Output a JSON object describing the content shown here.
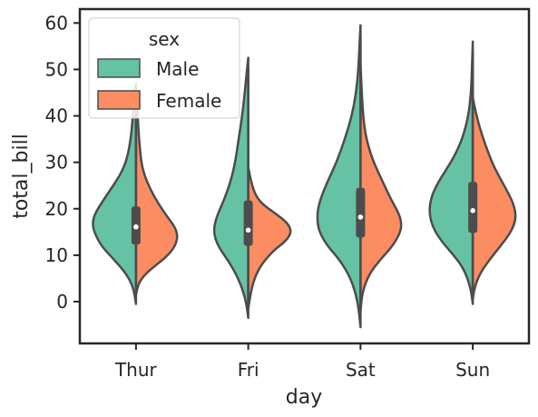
{
  "chart_data": {
    "type": "violin",
    "split": true,
    "xlabel": "day",
    "ylabel": "total_bill",
    "categories": [
      "Thur",
      "Fri",
      "Sat",
      "Sun"
    ],
    "ylim": [
      -9,
      63
    ],
    "yticks": [
      0,
      10,
      20,
      30,
      40,
      50,
      60
    ],
    "legend": {
      "title": "sex",
      "position": "top-left",
      "entries": [
        {
          "label": "Male",
          "color": "#66c2a5"
        },
        {
          "label": "Female",
          "color": "#fc8d62"
        }
      ]
    },
    "series": [
      {
        "name": "Male",
        "color": "#66c2a5",
        "side": "left",
        "violins": [
          {
            "range": [
              -0.5,
              47
            ],
            "median": 16.1,
            "q1": 12.3,
            "q3": 20.5,
            "profile": [
              [
                -0.5,
                0
              ],
              [
                3,
                0.06
              ],
              [
                6,
                0.22
              ],
              [
                9,
                0.5
              ],
              [
                12,
                0.8
              ],
              [
                15,
                0.96
              ],
              [
                17,
                1.0
              ],
              [
                19,
                0.94
              ],
              [
                22,
                0.74
              ],
              [
                25,
                0.52
              ],
              [
                28,
                0.32
              ],
              [
                31,
                0.2
              ],
              [
                35,
                0.12
              ],
              [
                40,
                0.07
              ],
              [
                44,
                0.04
              ],
              [
                47,
                0
              ]
            ]
          },
          {
            "range": [
              -3.5,
              52.5
            ],
            "median": 15.4,
            "q1": 12.0,
            "q3": 21.8,
            "profile": [
              [
                -3.5,
                0
              ],
              [
                0,
                0.05
              ],
              [
                4,
                0.18
              ],
              [
                8,
                0.4
              ],
              [
                12,
                0.7
              ],
              [
                15,
                0.8
              ],
              [
                18,
                0.74
              ],
              [
                22,
                0.55
              ],
              [
                26,
                0.4
              ],
              [
                30,
                0.3
              ],
              [
                35,
                0.22
              ],
              [
                40,
                0.14
              ],
              [
                45,
                0.08
              ],
              [
                49,
                0.04
              ],
              [
                52.5,
                0
              ]
            ]
          },
          {
            "range": [
              -5.5,
              59.5
            ],
            "median": 18.2,
            "q1": 13.8,
            "q3": 24.5,
            "profile": [
              [
                -5.5,
                0
              ],
              [
                0,
                0.06
              ],
              [
                5,
                0.22
              ],
              [
                9,
                0.48
              ],
              [
                12,
                0.76
              ],
              [
                15,
                0.95
              ],
              [
                18,
                1.0
              ],
              [
                21,
                0.96
              ],
              [
                25,
                0.8
              ],
              [
                30,
                0.55
              ],
              [
                35,
                0.36
              ],
              [
                40,
                0.2
              ],
              [
                45,
                0.1
              ],
              [
                50,
                0.05
              ],
              [
                55,
                0.025
              ],
              [
                59.5,
                0
              ]
            ]
          },
          {
            "range": [
              -0.5,
              56
            ],
            "median": 19.6,
            "q1": 14.8,
            "q3": 25.8,
            "profile": [
              [
                -0.5,
                0
              ],
              [
                3,
                0.05
              ],
              [
                7,
                0.2
              ],
              [
                10,
                0.44
              ],
              [
                13,
                0.72
              ],
              [
                16,
                0.92
              ],
              [
                19,
                1.0
              ],
              [
                22,
                0.97
              ],
              [
                25,
                0.84
              ],
              [
                28,
                0.64
              ],
              [
                31,
                0.44
              ],
              [
                35,
                0.24
              ],
              [
                40,
                0.1
              ],
              [
                45,
                0.04
              ],
              [
                50,
                0.02
              ],
              [
                56,
                0
              ]
            ]
          }
        ]
      },
      {
        "name": "Female",
        "color": "#fc8d62",
        "side": "right",
        "violins": [
          {
            "range": [
              1.5,
              44.5
            ],
            "median": 16.1,
            "q1": 12.3,
            "q3": 20.5,
            "profile": [
              [
                1.5,
                0
              ],
              [
                4,
                0.06
              ],
              [
                6,
                0.22
              ],
              [
                8,
                0.48
              ],
              [
                10,
                0.74
              ],
              [
                12,
                0.9
              ],
              [
                14,
                0.96
              ],
              [
                16,
                0.9
              ],
              [
                18,
                0.74
              ],
              [
                21,
                0.52
              ],
              [
                24,
                0.34
              ],
              [
                27,
                0.2
              ],
              [
                30,
                0.12
              ],
              [
                35,
                0.07
              ],
              [
                40,
                0.04
              ],
              [
                44.5,
                0
              ]
            ]
          },
          {
            "range": [
              -1.5,
              29
            ],
            "median": 15.4,
            "q1": 12.0,
            "q3": 21.8,
            "profile": [
              [
                -1.5,
                0
              ],
              [
                2,
                0.06
              ],
              [
                5,
                0.14
              ],
              [
                8,
                0.3
              ],
              [
                11,
                0.58
              ],
              [
                13,
                0.86
              ],
              [
                15,
                1.0
              ],
              [
                17,
                0.9
              ],
              [
                19,
                0.62
              ],
              [
                21,
                0.32
              ],
              [
                23,
                0.16
              ],
              [
                26,
                0.06
              ],
              [
                29,
                0
              ]
            ]
          },
          {
            "range": [
              -2,
              51
            ],
            "median": 18.2,
            "q1": 13.8,
            "q3": 24.5,
            "profile": [
              [
                -2,
                0
              ],
              [
                2,
                0.04
              ],
              [
                6,
                0.2
              ],
              [
                9,
                0.45
              ],
              [
                12,
                0.74
              ],
              [
                15,
                0.92
              ],
              [
                17,
                0.94
              ],
              [
                19,
                0.88
              ],
              [
                22,
                0.7
              ],
              [
                26,
                0.5
              ],
              [
                30,
                0.3
              ],
              [
                34,
                0.16
              ],
              [
                38,
                0.08
              ],
              [
                43,
                0.04
              ],
              [
                47,
                0.02
              ],
              [
                51,
                0
              ]
            ]
          },
          {
            "range": [
              0.5,
              44
            ],
            "median": 19.6,
            "q1": 14.8,
            "q3": 25.8,
            "profile": [
              [
                0.5,
                0
              ],
              [
                3,
                0.04
              ],
              [
                6,
                0.16
              ],
              [
                9,
                0.38
              ],
              [
                12,
                0.64
              ],
              [
                15,
                0.88
              ],
              [
                18,
                1.0
              ],
              [
                21,
                0.94
              ],
              [
                24,
                0.78
              ],
              [
                27,
                0.6
              ],
              [
                30,
                0.44
              ],
              [
                34,
                0.28
              ],
              [
                38,
                0.14
              ],
              [
                42,
                0.04
              ],
              [
                44,
                0
              ]
            ]
          }
        ]
      }
    ]
  }
}
